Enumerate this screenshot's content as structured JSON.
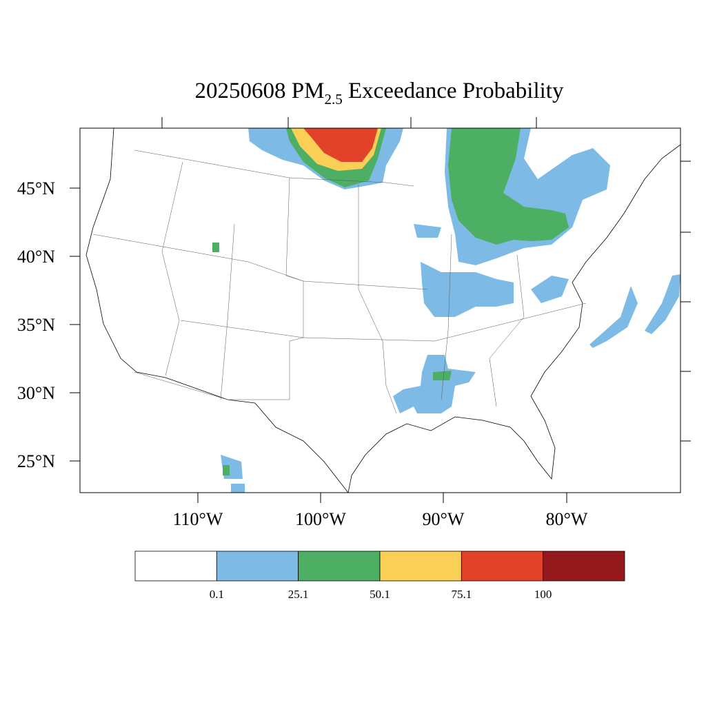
{
  "title": {
    "prefix": "20250608 PM",
    "subscript": "2.5",
    "suffix": " Exceedance Probability"
  },
  "lat_labels": [
    "45°N",
    "40°N",
    "35°N",
    "30°N",
    "25°N"
  ],
  "lon_labels": [
    "110°W",
    "100°W",
    "90°W",
    "80°W"
  ],
  "legend": {
    "colors": [
      "#ffffff",
      "#7dbbe6",
      "#4caf64",
      "#f9cf55",
      "#e2412a",
      "#94181c"
    ],
    "levels": [
      "0.1",
      "25.1",
      "50.1",
      "75.1",
      "100"
    ]
  }
}
